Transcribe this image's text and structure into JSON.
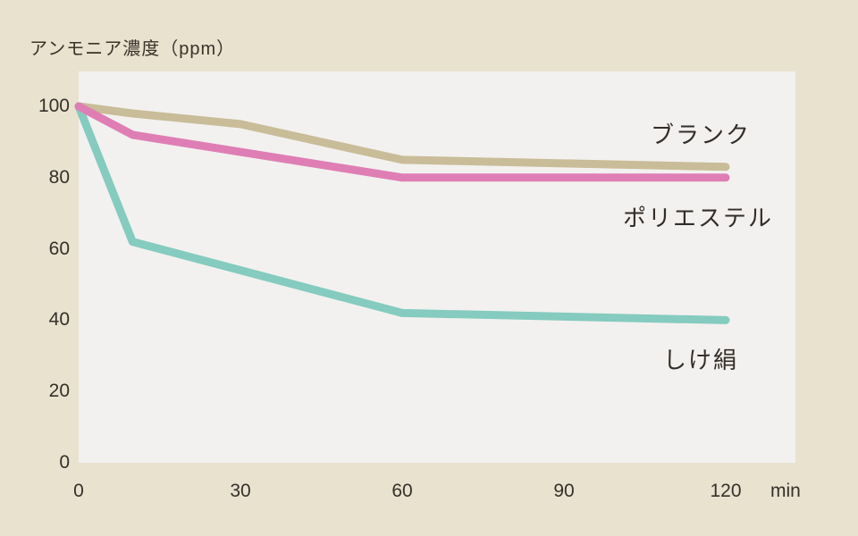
{
  "page": {
    "background_color": "#e9e2cf",
    "plot_background_color": "#f2f1ef",
    "text_color": "#362f2b"
  },
  "chart_data": {
    "type": "line",
    "title": "アンモニア濃度（ppm）",
    "xlabel": "min",
    "ylabel": "アンモニア濃度（ppm）",
    "x_unit": "min",
    "xlim": [
      0,
      133
    ],
    "ylim": [
      0,
      110
    ],
    "xticks": [
      0,
      30,
      60,
      90,
      120
    ],
    "yticks": [
      0,
      20,
      40,
      60,
      80,
      100
    ],
    "grid": false,
    "legend_position": "inline-labels-right",
    "line_width": 9,
    "series": [
      {
        "name": "ブランク",
        "color": "#c9bc98",
        "points": [
          [
            0,
            100
          ],
          [
            10,
            98
          ],
          [
            30,
            95
          ],
          [
            60,
            85
          ],
          [
            120,
            83
          ]
        ]
      },
      {
        "name": "しけ絹",
        "color": "#85cbbf",
        "points": [
          [
            0,
            100
          ],
          [
            10,
            62
          ],
          [
            60,
            42
          ],
          [
            120,
            40
          ]
        ]
      },
      {
        "name": "ポリエステル",
        "color": "#df7eb5",
        "points": [
          [
            0,
            100
          ],
          [
            10,
            92
          ],
          [
            60,
            80
          ],
          [
            120,
            80
          ]
        ]
      }
    ]
  }
}
